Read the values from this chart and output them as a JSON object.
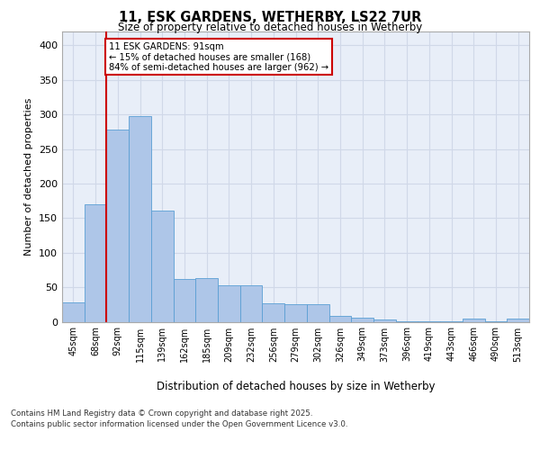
{
  "title_line1": "11, ESK GARDENS, WETHERBY, LS22 7UR",
  "title_line2": "Size of property relative to detached houses in Wetherby",
  "xlabel": "Distribution of detached houses by size in Wetherby",
  "ylabel": "Number of detached properties",
  "categories": [
    "45sqm",
    "68sqm",
    "92sqm",
    "115sqm",
    "139sqm",
    "162sqm",
    "185sqm",
    "209sqm",
    "232sqm",
    "256sqm",
    "279sqm",
    "302sqm",
    "326sqm",
    "349sqm",
    "373sqm",
    "396sqm",
    "419sqm",
    "443sqm",
    "466sqm",
    "490sqm",
    "513sqm"
  ],
  "values": [
    28,
    170,
    278,
    297,
    161,
    62,
    63,
    53,
    53,
    27,
    25,
    25,
    9,
    6,
    3,
    1,
    1,
    1,
    4,
    1,
    4
  ],
  "bar_color": "#aec6e8",
  "bar_edge_color": "#5a9fd4",
  "grid_color": "#d0d8e8",
  "background_color": "#e8eef8",
  "annotation_line1": "11 ESK GARDENS: 91sqm",
  "annotation_line2": "← 15% of detached houses are smaller (168)",
  "annotation_line3": "84% of semi-detached houses are larger (962) →",
  "vline_color": "#cc0000",
  "footer_line1": "Contains HM Land Registry data © Crown copyright and database right 2025.",
  "footer_line2": "Contains public sector information licensed under the Open Government Licence v3.0.",
  "ylim": [
    0,
    420
  ],
  "yticks": [
    0,
    50,
    100,
    150,
    200,
    250,
    300,
    350,
    400
  ]
}
